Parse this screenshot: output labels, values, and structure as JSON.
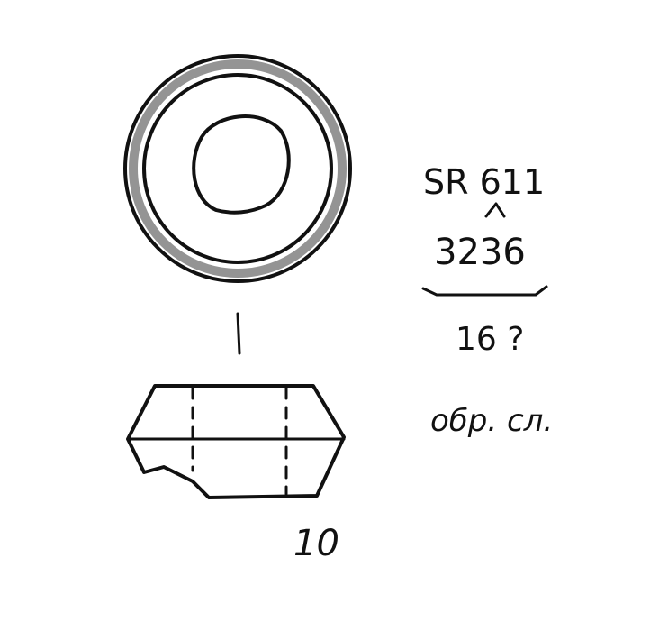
{
  "sketch": {
    "ink_color": "#111111",
    "paper_color": "#ffffff",
    "label_code": "SR 611",
    "label_number": "3236",
    "label_question": "16 ?",
    "label_abbrev": "обр. сл.",
    "figure_number": "10"
  }
}
